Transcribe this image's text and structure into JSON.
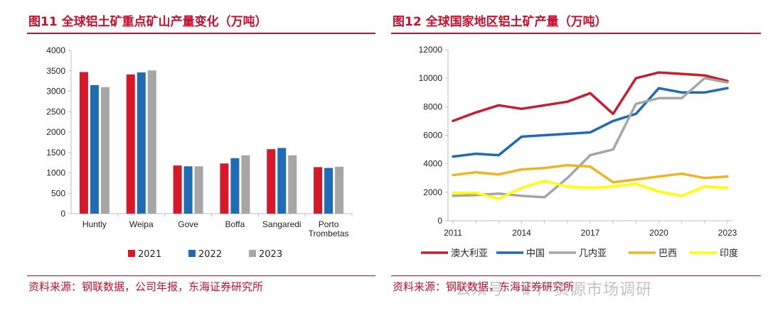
{
  "left": {
    "title": "图11  全球铝土矿重点矿山产量变化（万吨）",
    "source": "资料来源：钢联数据，公司年报，东海证券研究所"
  },
  "right": {
    "title": "图12  全球国家地区铝土矿产量（万吨）",
    "source": "资料来源：钢联数据，东海证券研究所"
  },
  "watermark": "公众号 · 矿产资源市场调研",
  "chart_data": [
    {
      "type": "bar",
      "categories": [
        "Huntly",
        "Weipa",
        "Gove",
        "Boffa",
        "Sangaredi",
        "Porto Trombetas"
      ],
      "category_lines": [
        [
          "Huntly"
        ],
        [
          "Weipa"
        ],
        [
          "Gove"
        ],
        [
          "Boffa"
        ],
        [
          "Sangaredi"
        ],
        [
          "Porto",
          "Trombetas"
        ]
      ],
      "series": [
        {
          "name": "2021",
          "color": "#d7182a",
          "values": [
            3470,
            3410,
            1180,
            1230,
            1580,
            1140
          ]
        },
        {
          "name": "2022",
          "color": "#1f6bb5",
          "values": [
            3150,
            3460,
            1160,
            1360,
            1610,
            1120
          ]
        },
        {
          "name": "2023",
          "color": "#a6a6a6",
          "values": [
            3100,
            3510,
            1160,
            1430,
            1430,
            1150
          ]
        }
      ],
      "ylim": [
        0,
        4000
      ],
      "yticks": [
        0,
        500,
        1000,
        1500,
        2000,
        2500,
        3000,
        3500,
        4000
      ],
      "legend_position": "bottom"
    },
    {
      "type": "line",
      "x": [
        2011,
        2012,
        2013,
        2014,
        2015,
        2016,
        2017,
        2018,
        2019,
        2020,
        2021,
        2022,
        2023
      ],
      "xticks": [
        2011,
        2014,
        2017,
        2020,
        2023
      ],
      "series": [
        {
          "name": "澳大利亚",
          "color": "#c81e2e",
          "values": [
            7000,
            7600,
            8100,
            7850,
            8100,
            8350,
            8950,
            7500,
            10000,
            10400,
            10300,
            10200,
            9800
          ]
        },
        {
          "name": "中国",
          "color": "#1f6bb5",
          "values": [
            4500,
            4700,
            4600,
            5900,
            6000,
            6100,
            6200,
            7000,
            7500,
            9300,
            9000,
            9000,
            9300
          ]
        },
        {
          "name": "几内亚",
          "color": "#a6a6a6",
          "values": [
            1750,
            1800,
            1900,
            1750,
            1650,
            3000,
            4600,
            5000,
            8200,
            8600,
            8600,
            10000,
            9700
          ]
        },
        {
          "name": "巴西",
          "color": "#f0b41c",
          "values": [
            3200,
            3400,
            3250,
            3600,
            3700,
            3900,
            3800,
            2700,
            2900,
            3100,
            3300,
            3000,
            3100
          ]
        },
        {
          "name": "印度",
          "color": "#ffff00",
          "values": [
            1950,
            1950,
            1550,
            2300,
            2800,
            2400,
            2300,
            2400,
            2600,
            2050,
            1750,
            2400,
            2300
          ]
        }
      ],
      "ylim": [
        0,
        12000
      ],
      "yticks": [
        0,
        2000,
        4000,
        6000,
        8000,
        10000,
        12000
      ],
      "legend_position": "bottom"
    }
  ]
}
